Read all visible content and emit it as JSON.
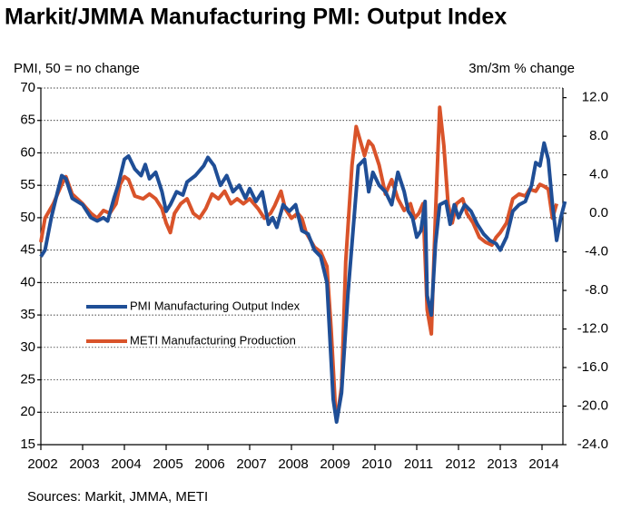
{
  "chart_data": {
    "type": "line",
    "title": "Markit/JMMA Manufacturing PMI: Output Index",
    "y_label": "PMI, 50 = no change",
    "y2_label": "3m/3m % change",
    "source": "Sources: Markit, JMMA, METI",
    "xlim": [
      2002,
      2014.5
    ],
    "xticks": [
      2002,
      2003,
      2004,
      2005,
      2006,
      2007,
      2008,
      2009,
      2010,
      2011,
      2012,
      2013,
      2014
    ],
    "ylim": [
      15,
      70
    ],
    "yticks": [
      15,
      20,
      25,
      30,
      35,
      40,
      45,
      50,
      55,
      60,
      65,
      70
    ],
    "y2lim": [
      -24,
      13
    ],
    "y2ticks": [
      {
        "value": 12,
        "label": "12.0"
      },
      {
        "value": 8,
        "label": "8.0"
      },
      {
        "value": 4,
        "label": "4.0"
      },
      {
        "value": 0,
        "label": "0.0"
      },
      {
        "value": -4,
        "label": "-4.0"
      },
      {
        "value": -8,
        "label": "-8.0"
      },
      {
        "value": -12,
        "label": "-12.0"
      },
      {
        "value": -16,
        "label": "-16.0"
      },
      {
        "value": -20,
        "label": "-20.0"
      },
      {
        "value": -24,
        "label": "-24.0"
      }
    ],
    "grid": true,
    "series": [
      {
        "name": "PMI Manufacturing Output Index",
        "color": "#1f4e96",
        "axis": "y",
        "x": [
          2002.0,
          2002.1,
          2002.25,
          2002.4,
          2002.5,
          2002.6,
          2002.75,
          2003.0,
          2003.2,
          2003.35,
          2003.5,
          2003.6,
          2003.75,
          2003.85,
          2004.0,
          2004.1,
          2004.25,
          2004.4,
          2004.5,
          2004.6,
          2004.75,
          2004.9,
          2005.0,
          2005.1,
          2005.25,
          2005.4,
          2005.5,
          2005.7,
          2005.9,
          2006.0,
          2006.15,
          2006.3,
          2006.45,
          2006.6,
          2006.75,
          2006.9,
          2007.0,
          2007.15,
          2007.3,
          2007.45,
          2007.55,
          2007.65,
          2007.8,
          2007.95,
          2008.1,
          2008.25,
          2008.4,
          2008.55,
          2008.7,
          2008.85,
          2008.95,
          2009.0,
          2009.08,
          2009.2,
          2009.35,
          2009.5,
          2009.6,
          2009.75,
          2009.85,
          2009.95,
          2010.1,
          2010.25,
          2010.4,
          2010.55,
          2010.7,
          2010.8,
          2010.9,
          2011.0,
          2011.1,
          2011.2,
          2011.25,
          2011.35,
          2011.45,
          2011.55,
          2011.7,
          2011.8,
          2011.9,
          2012.0,
          2012.15,
          2012.3,
          2012.45,
          2012.6,
          2012.75,
          2012.9,
          2013.0,
          2013.15,
          2013.3,
          2013.45,
          2013.6,
          2013.75,
          2013.85,
          2013.95,
          2014.05,
          2014.15,
          2014.25,
          2014.35,
          2014.45,
          2014.55
        ],
        "values": [
          44,
          45,
          50,
          54,
          56.5,
          56,
          53,
          52,
          50,
          49.5,
          50,
          49.5,
          53,
          55,
          59,
          59.5,
          57.5,
          56.5,
          58.2,
          56,
          57,
          54,
          51,
          52,
          54,
          53.5,
          55.5,
          56.5,
          58,
          59.3,
          58,
          55,
          56.5,
          54,
          55,
          53,
          54.5,
          52.5,
          54,
          49,
          50,
          48.5,
          52,
          51,
          52,
          48,
          47.5,
          45,
          44,
          40,
          28,
          22,
          18.5,
          23,
          38,
          50,
          58,
          59,
          54,
          57,
          55,
          54,
          52,
          57,
          54,
          51,
          50,
          47,
          48,
          52.5,
          38,
          35,
          46,
          52,
          52.5,
          49,
          52,
          50,
          52,
          51,
          49,
          47.5,
          46.5,
          46,
          45,
          47,
          51,
          52,
          52.5,
          55,
          58.5,
          58,
          61.5,
          59,
          52,
          46.5,
          50,
          52.5
        ]
      },
      {
        "name": "METI Manufacturing Production",
        "color": "#d9532a",
        "axis": "y2",
        "x": [
          2002.0,
          2002.1,
          2002.3,
          2002.5,
          2002.6,
          2002.75,
          2003.0,
          2003.2,
          2003.35,
          2003.5,
          2003.65,
          2003.8,
          2003.9,
          2004.0,
          2004.1,
          2004.25,
          2004.45,
          2004.6,
          2004.75,
          2004.9,
          2005.0,
          2005.1,
          2005.2,
          2005.35,
          2005.5,
          2005.65,
          2005.8,
          2005.95,
          2006.1,
          2006.25,
          2006.4,
          2006.55,
          2006.7,
          2006.85,
          2007.0,
          2007.2,
          2007.35,
          2007.5,
          2007.6,
          2007.75,
          2007.85,
          2008.0,
          2008.15,
          2008.25,
          2008.35,
          2008.55,
          2008.7,
          2008.85,
          2008.95,
          2009.05,
          2009.12,
          2009.2,
          2009.3,
          2009.45,
          2009.55,
          2009.65,
          2009.75,
          2009.85,
          2009.95,
          2010.1,
          2010.25,
          2010.4,
          2010.55,
          2010.7,
          2010.85,
          2010.95,
          2011.05,
          2011.15,
          2011.25,
          2011.35,
          2011.45,
          2011.55,
          2011.65,
          2011.75,
          2011.85,
          2011.95,
          2012.1,
          2012.2,
          2012.35,
          2012.5,
          2012.65,
          2012.8,
          2012.9,
          2013.0,
          2013.15,
          2013.3,
          2013.45,
          2013.6,
          2013.7,
          2013.85,
          2013.95,
          2014.05,
          2014.15,
          2014.25,
          2014.35
        ],
        "values": [
          -3,
          -0.5,
          1,
          3,
          3.8,
          2,
          1,
          0,
          -0.5,
          0.3,
          0,
          1,
          3,
          3.8,
          3.5,
          1.8,
          1.5,
          2,
          1.5,
          0.5,
          -1,
          -2,
          0,
          1,
          1.5,
          0,
          -0.5,
          0.5,
          2,
          1.5,
          2.3,
          1,
          1.5,
          1,
          1.5,
          0.5,
          -0.5,
          0,
          0.8,
          2.3,
          0.5,
          -0.5,
          0,
          -0.5,
          -2,
          -3.5,
          -4,
          -5.5,
          -12,
          -20,
          -20.5,
          -18,
          -5,
          5,
          9,
          7.5,
          6,
          7.5,
          7,
          5,
          2,
          3.5,
          1.5,
          0.3,
          1,
          -0.5,
          0,
          1,
          -10,
          -12.5,
          0,
          11,
          7,
          1,
          -1,
          1,
          1.5,
          0,
          -1,
          -2.5,
          -3,
          -3.3,
          -2.5,
          -2,
          -1,
          1.5,
          2,
          1.8,
          2.5,
          2.3,
          3,
          2.8,
          2.5,
          -0.5,
          1
        ]
      }
    ]
  }
}
